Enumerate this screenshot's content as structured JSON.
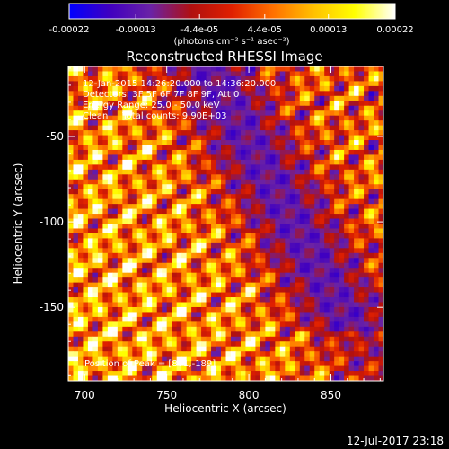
{
  "chart_data": {
    "type": "heatmap",
    "title": "Reconstructed RHESSI Image",
    "xlabel": "Heliocentric X (arcsec)",
    "ylabel": "Heliocentric Y (arcsec)",
    "xlim": [
      690,
      882
    ],
    "ylim": [
      -193,
      -9
    ],
    "xticks": [
      700,
      750,
      800,
      850
    ],
    "yticks": [
      -50,
      -100,
      -150
    ],
    "colorbar": {
      "label": "(photons cm⁻² s⁻¹ asec⁻²)",
      "range": [
        -0.00022,
        0.00022
      ],
      "ticks": [
        {
          "value": -0.00022,
          "label": "-0.00022"
        },
        {
          "value": -0.00013,
          "label": "-0.00013"
        },
        {
          "value": -4.4e-05,
          "label": "-4.4e-05"
        },
        {
          "value": 4.4e-05,
          "label": "4.4e-05"
        },
        {
          "value": 0.00013,
          "label": "0.00013"
        },
        {
          "value": 0.00022,
          "label": "0.00022"
        }
      ],
      "colors": [
        "#0000ff",
        "#4000c0",
        "#6a22a6",
        "#b01010",
        "#e02000",
        "#ff7000",
        "#ffc000",
        "#ffff00",
        "#ffffff"
      ]
    },
    "annotations": [
      "12-Jan-2015 14:26:20.000 to 14:36:20.000",
      "Detectors: 3F 5F 6F 7F 8F 9F, Att 0",
      "Energy Range: 25.0 - 50.0 keV",
      "Clean     Total counts: 9.90E+03"
    ],
    "peak_label": "Position of Peak = [801,-189]",
    "peak": [
      801,
      -189
    ],
    "grid": false
  },
  "footer": {
    "timestamp": "12-Jul-2017 23:18"
  }
}
